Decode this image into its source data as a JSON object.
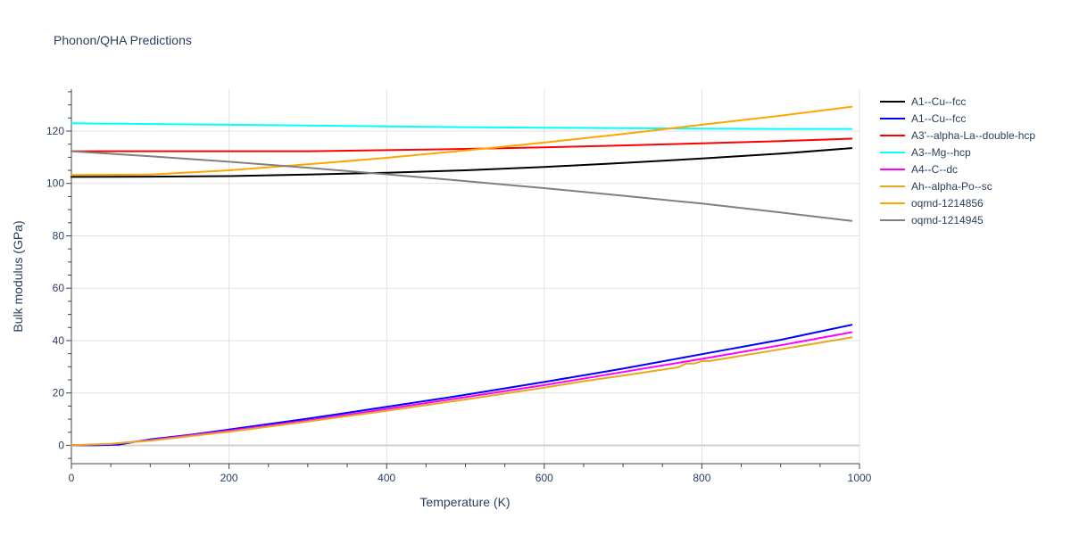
{
  "chart_data": {
    "type": "line",
    "title": "Phonon/QHA Predictions",
    "xlabel": "Temperature (K)",
    "ylabel": "Bulk modulus (GPa)",
    "xlim": [
      0,
      1000
    ],
    "ylim": [
      -7,
      136
    ],
    "xticks": [
      0,
      200,
      400,
      600,
      800,
      1000
    ],
    "yticks": [
      0,
      20,
      40,
      60,
      80,
      100,
      120
    ],
    "grid": true,
    "legend_position": "right",
    "series": [
      {
        "name": "A1--Cu--fcc",
        "color": "#000000",
        "x": [
          0,
          100,
          200,
          300,
          400,
          500,
          600,
          700,
          800,
          900,
          990
        ],
        "y": [
          102.5,
          102.6,
          102.8,
          103.4,
          104.1,
          105.0,
          106.3,
          107.8,
          109.5,
          111.4,
          113.5
        ]
      },
      {
        "name": "A1--Cu--fcc",
        "color": "#0000ff",
        "x": [
          0,
          30,
          60,
          100,
          150,
          200,
          300,
          400,
          500,
          600,
          700,
          800,
          900,
          990
        ],
        "y": [
          0,
          0,
          0.3,
          2.3,
          4.0,
          6.0,
          10.2,
          14.7,
          19.3,
          24.2,
          29.3,
          34.8,
          40.3,
          46.0
        ]
      },
      {
        "name": "A3'--alpha-La--double-hcp",
        "color": "#ff0000",
        "x": [
          0,
          100,
          200,
          300,
          400,
          500,
          600,
          700,
          800,
          900,
          990
        ],
        "y": [
          112.3,
          112.3,
          112.3,
          112.3,
          112.7,
          113.2,
          113.8,
          114.5,
          115.3,
          116.2,
          117.1
        ]
      },
      {
        "name": "A3--Mg--hcp",
        "color": "#00ffff",
        "x": [
          0,
          100,
          200,
          300,
          400,
          500,
          600,
          700,
          800,
          900,
          990
        ],
        "y": [
          123.0,
          122.7,
          122.4,
          122.1,
          121.8,
          121.5,
          121.3,
          121.1,
          120.9,
          120.8,
          120.8
        ]
      },
      {
        "name": "A4--C--dc",
        "color": "#ff00ff",
        "x": [
          0,
          50,
          100,
          200,
          300,
          400,
          500,
          600,
          700,
          800,
          900,
          990
        ],
        "y": [
          0,
          0.5,
          2.0,
          5.6,
          9.5,
          13.9,
          18.4,
          23.0,
          28.0,
          33.0,
          38.2,
          43.2
        ]
      },
      {
        "name": "Ah--alpha-Po--sc",
        "color": "#e6a91a",
        "x": [
          0,
          50,
          100,
          200,
          300,
          400,
          500,
          600,
          640,
          650,
          700,
          770,
          780,
          790,
          800,
          810,
          900,
          990
        ],
        "y": [
          0,
          0.6,
          1.8,
          5.2,
          9.1,
          13.2,
          17.5,
          22.0,
          24.0,
          24.5,
          26.6,
          29.8,
          31.2,
          31.2,
          32.2,
          32.2,
          36.7,
          41.2
        ]
      },
      {
        "name": "oqmd-1214856",
        "color": "#ffa500",
        "x": [
          0,
          100,
          200,
          300,
          400,
          500,
          600,
          700,
          800,
          900,
          990
        ],
        "y": [
          103.2,
          103.4,
          105.0,
          107.3,
          109.8,
          112.6,
          115.6,
          118.9,
          122.4,
          125.9,
          129.3
        ]
      },
      {
        "name": "oqmd-1214945",
        "color": "#808080",
        "x": [
          0,
          100,
          200,
          300,
          400,
          500,
          600,
          700,
          800,
          900,
          990
        ],
        "y": [
          112.3,
          110.4,
          108.3,
          106.0,
          103.5,
          100.9,
          98.2,
          95.3,
          92.3,
          88.9,
          85.7
        ]
      }
    ]
  }
}
